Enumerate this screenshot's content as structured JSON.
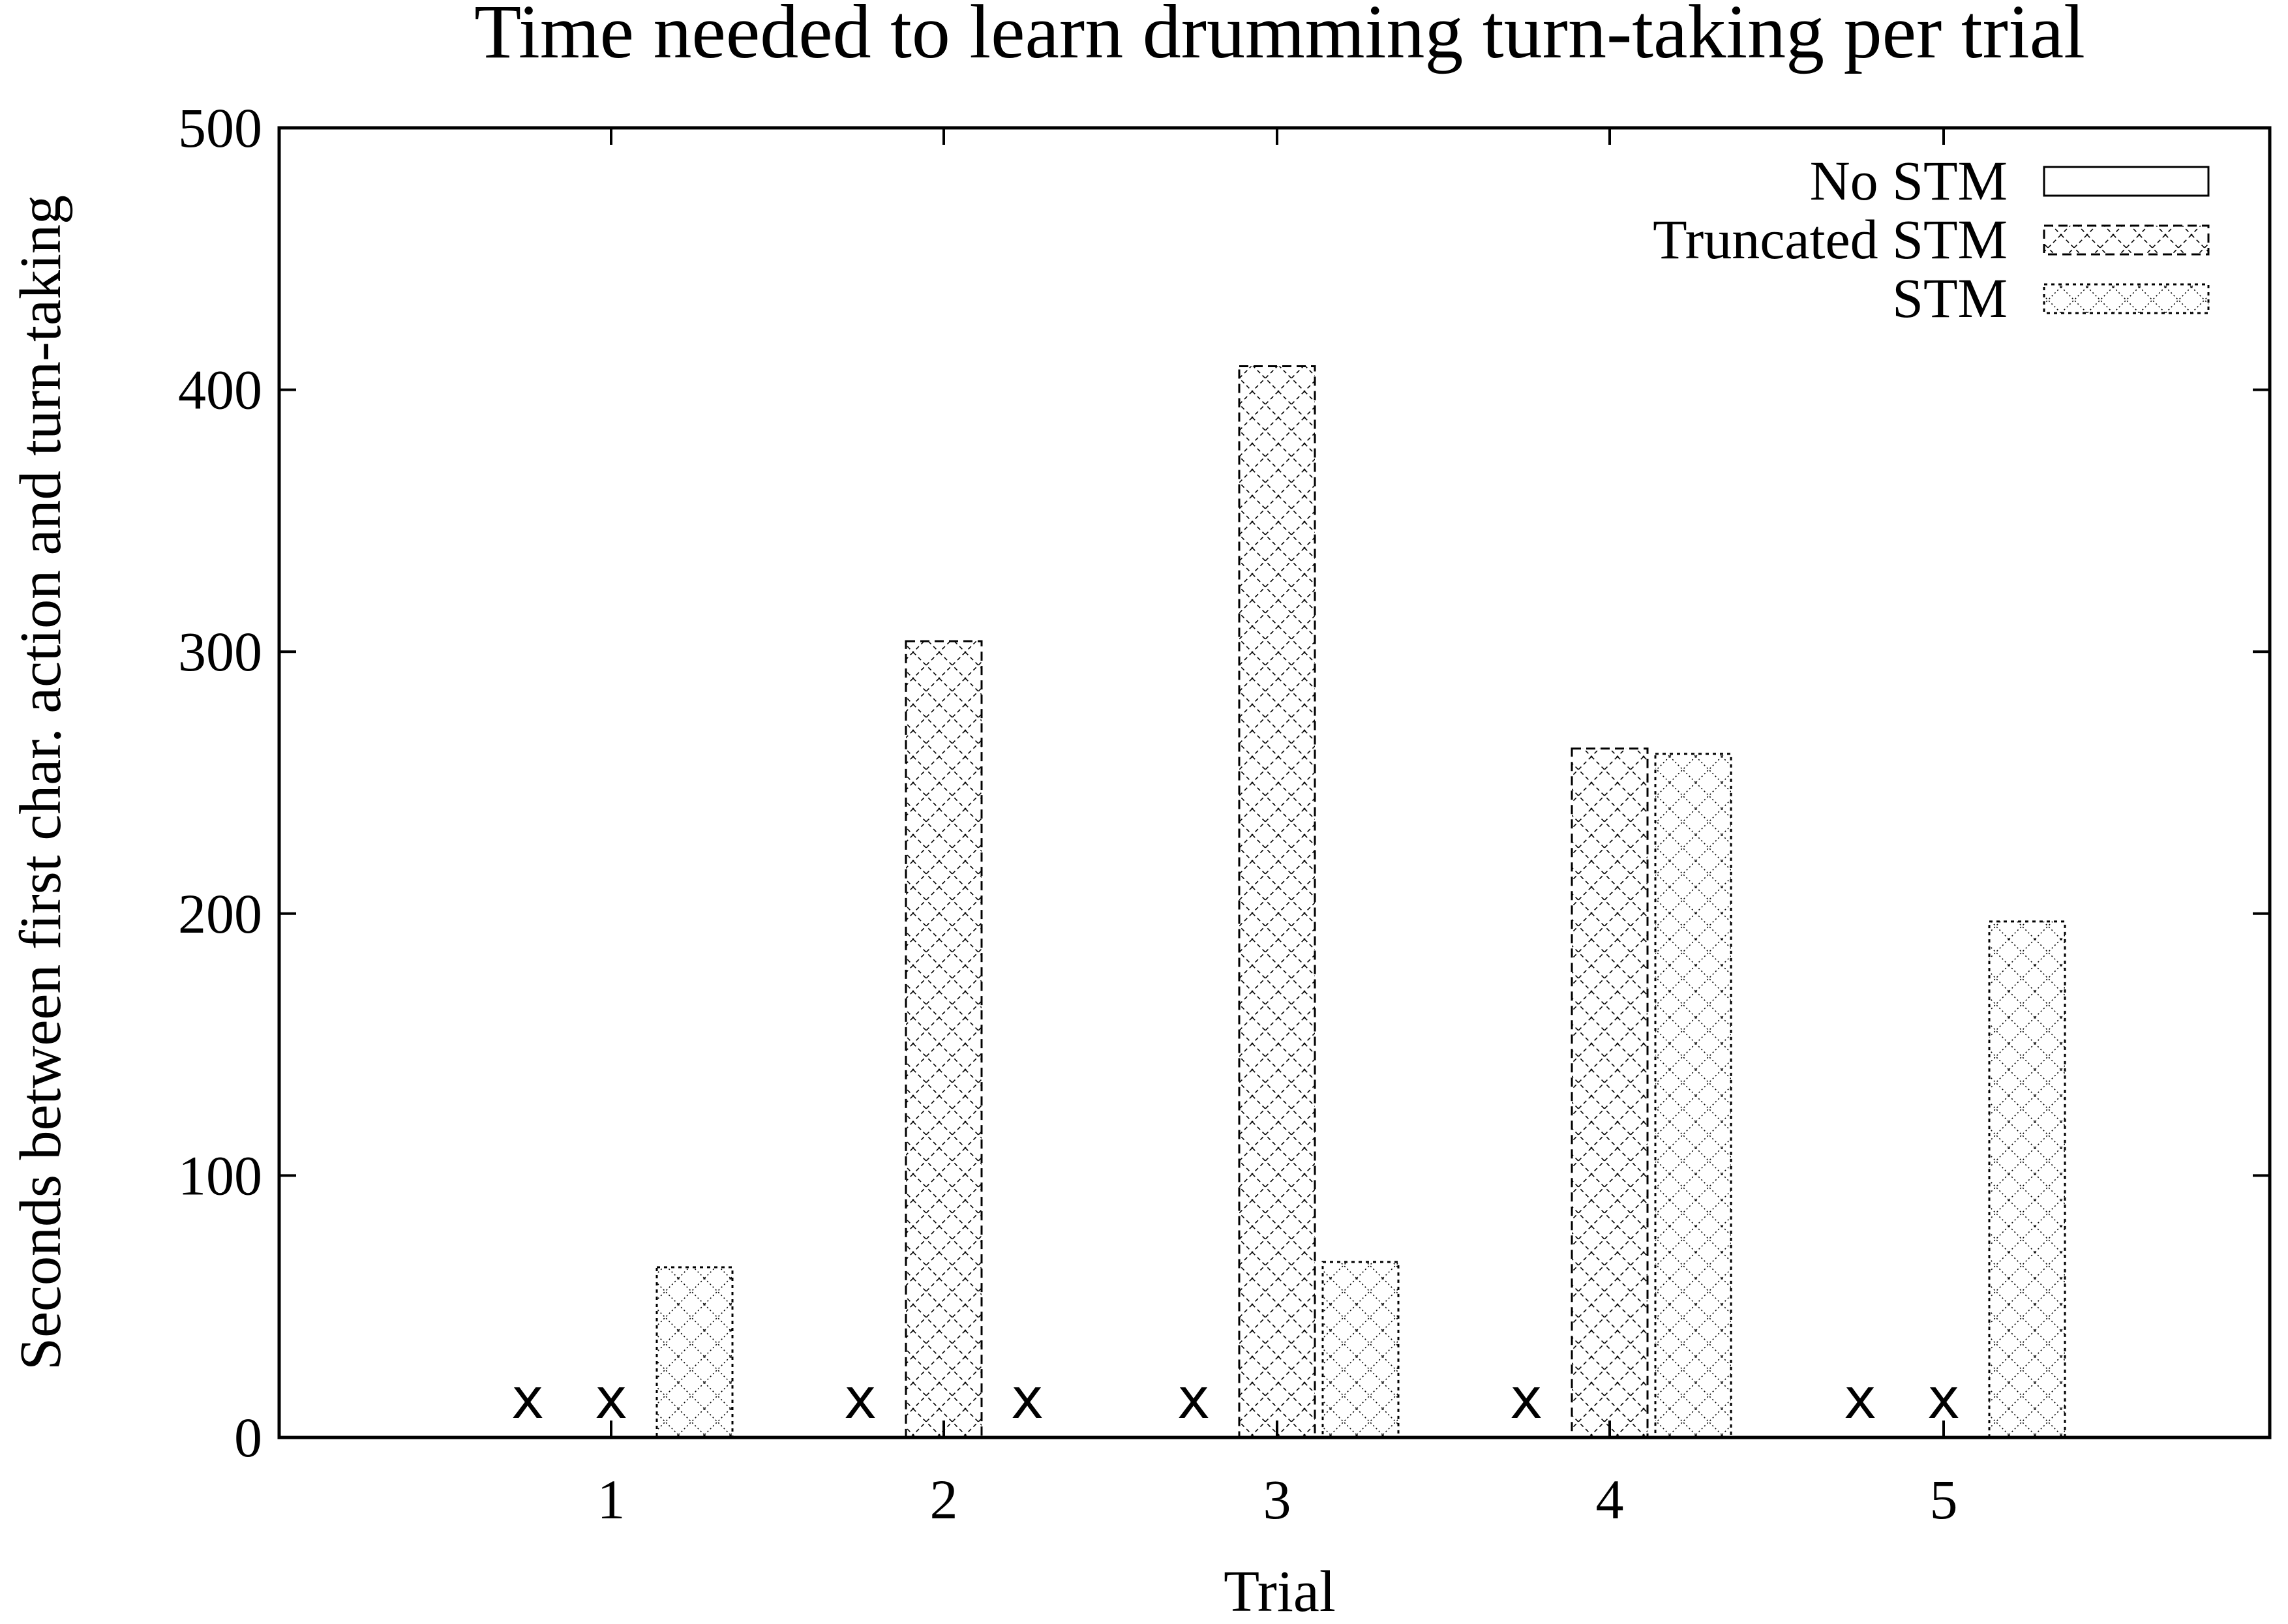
{
  "chart_data": {
    "type": "bar",
    "title": "Time needed to learn drumming turn-taking per trial",
    "xlabel": "Trial",
    "ylabel": "Seconds between first char. action and turn-taking",
    "categories": [
      "1",
      "2",
      "3",
      "4",
      "5"
    ],
    "ylim": [
      0,
      500
    ],
    "yticks": [
      0,
      100,
      200,
      300,
      400,
      500
    ],
    "grid": false,
    "legend_position": "top-right",
    "missing_marker": "x",
    "series": [
      {
        "name": "No STM",
        "pattern": "empty",
        "values": [
          null,
          null,
          null,
          null,
          null
        ]
      },
      {
        "name": "Truncated STM",
        "pattern": "crosshatch",
        "values": [
          null,
          304,
          409,
          263,
          null
        ]
      },
      {
        "name": "STM",
        "pattern": "dotted-crosshatch",
        "values": [
          65,
          null,
          67,
          261,
          197
        ]
      }
    ]
  },
  "colors": {
    "line": "#000000",
    "background": "#ffffff"
  }
}
